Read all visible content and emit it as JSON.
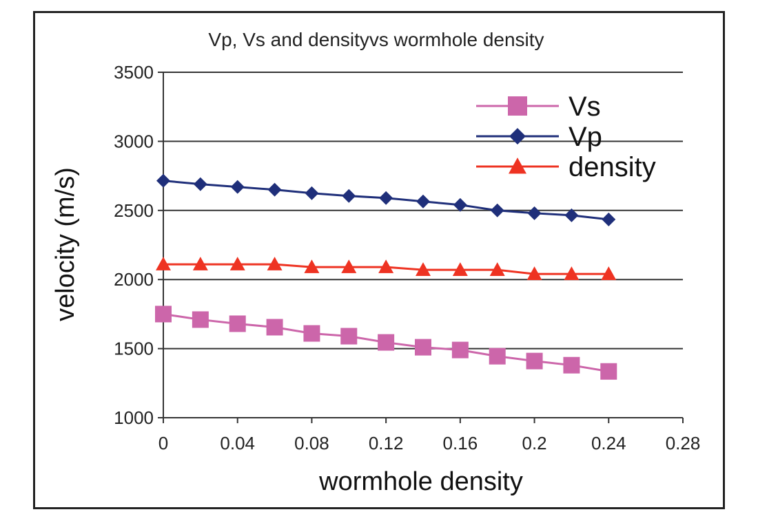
{
  "chart_data": {
    "type": "line",
    "title": "Vp, Vs and densityvs wormhole density",
    "xlabel": "wormhole density",
    "ylabel": "velocity (m/s)",
    "xlim": [
      0,
      0.28
    ],
    "ylim": [
      1000,
      3500
    ],
    "xticks": [
      0,
      0.04,
      0.08,
      0.12,
      0.16,
      0.2,
      0.24,
      0.28
    ],
    "xtick_labels": [
      "0",
      "0.04",
      "0.08",
      "0.12",
      "0.16",
      "0.2",
      "0.24",
      "0.28"
    ],
    "yticks": [
      1000,
      1500,
      2000,
      2500,
      3000,
      3500
    ],
    "ytick_labels": [
      "1000",
      "1500",
      "2000",
      "2500",
      "3000",
      "3500"
    ],
    "grid": "horizontal",
    "legend_position": "top-right",
    "x": [
      0,
      0.02,
      0.04,
      0.06,
      0.08,
      0.1,
      0.12,
      0.14,
      0.16,
      0.18,
      0.2,
      0.22,
      0.24
    ],
    "series": [
      {
        "name": "Vs",
        "marker": "square",
        "color": "#cc66aa",
        "values": [
          1750,
          1710,
          1680,
          1655,
          1610,
          1590,
          1545,
          1510,
          1490,
          1445,
          1410,
          1380,
          1335
        ]
      },
      {
        "name": "Vp",
        "marker": "diamond",
        "color": "#1f2f7a",
        "values": [
          2715,
          2690,
          2670,
          2650,
          2625,
          2605,
          2590,
          2565,
          2540,
          2500,
          2480,
          2465,
          2435
        ]
      },
      {
        "name": "density",
        "marker": "triangle",
        "color": "#ee3322",
        "values": [
          2110,
          2110,
          2110,
          2110,
          2090,
          2090,
          2090,
          2070,
          2070,
          2070,
          2040,
          2040,
          2040
        ]
      }
    ]
  }
}
